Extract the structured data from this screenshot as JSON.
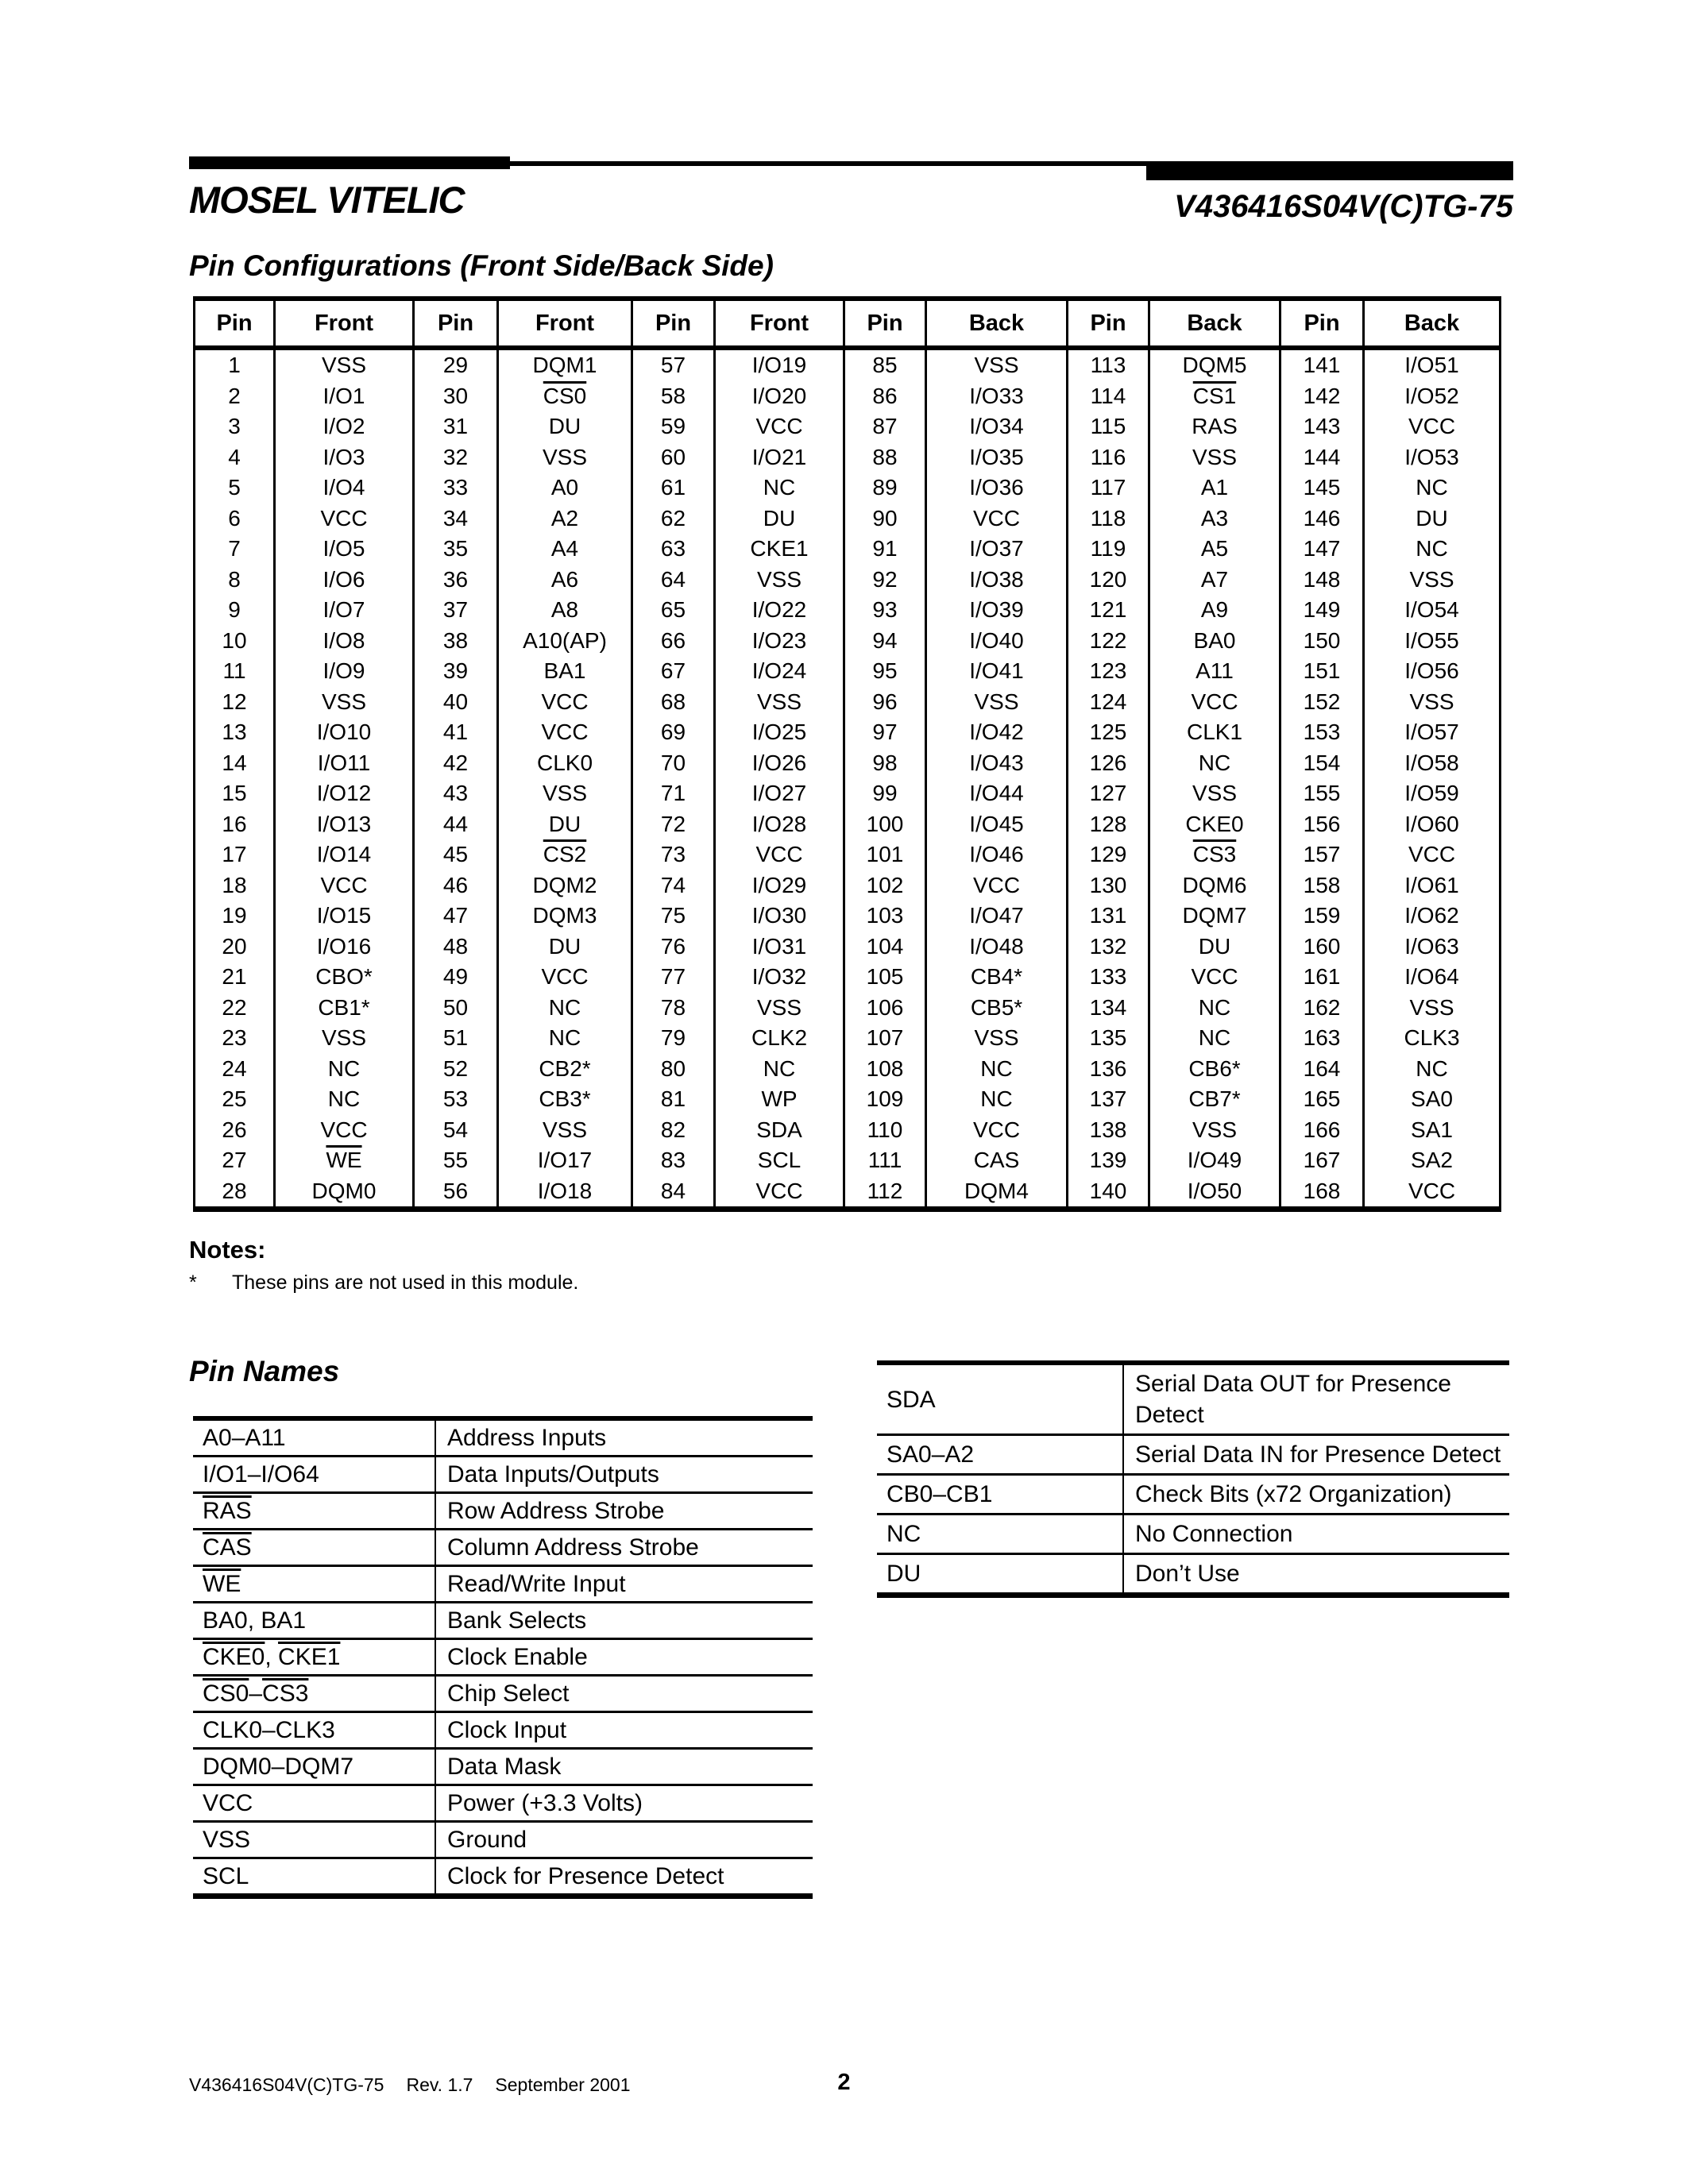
{
  "header": {
    "brand": "MOSEL VITELIC",
    "part_number": "V436416S04V(C)TG-75"
  },
  "titles": {
    "pin_config": "Pin Configurations (Front Side/Back Side)",
    "pin_names": "Pin Names"
  },
  "pin_table": {
    "headers": [
      "Pin",
      "Front",
      "Pin",
      "Front",
      "Pin",
      "Front",
      "Pin",
      "Back",
      "Pin",
      "Back",
      "Pin",
      "Back"
    ],
    "rows": [
      [
        "1",
        "VSS",
        "29",
        "DQM1",
        "57",
        "I/O19",
        "85",
        "VSS",
        "113",
        "DQM5",
        "141",
        "I/O51"
      ],
      [
        "2",
        "I/O1",
        "30",
        "{CS0}",
        "58",
        "I/O20",
        "86",
        "I/O33",
        "114",
        "{CS1}",
        "142",
        "I/O52"
      ],
      [
        "3",
        "I/O2",
        "31",
        "DU",
        "59",
        "VCC",
        "87",
        "I/O34",
        "115",
        "RAS",
        "143",
        "VCC"
      ],
      [
        "4",
        "I/O3",
        "32",
        "VSS",
        "60",
        "I/O21",
        "88",
        "I/O35",
        "116",
        "VSS",
        "144",
        "I/O53"
      ],
      [
        "5",
        "I/O4",
        "33",
        "A0",
        "61",
        "NC",
        "89",
        "I/O36",
        "117",
        "A1",
        "145",
        "NC"
      ],
      [
        "6",
        "VCC",
        "34",
        "A2",
        "62",
        "DU",
        "90",
        "VCC",
        "118",
        "A3",
        "146",
        "DU"
      ],
      [
        "7",
        "I/O5",
        "35",
        "A4",
        "63",
        "CKE1",
        "91",
        "I/O37",
        "119",
        "A5",
        "147",
        "NC"
      ],
      [
        "8",
        "I/O6",
        "36",
        "A6",
        "64",
        "VSS",
        "92",
        "I/O38",
        "120",
        "A7",
        "148",
        "VSS"
      ],
      [
        "9",
        "I/O7",
        "37",
        "A8",
        "65",
        "I/O22",
        "93",
        "I/O39",
        "121",
        "A9",
        "149",
        "I/O54"
      ],
      [
        "10",
        "I/O8",
        "38",
        "A10(AP)",
        "66",
        "I/O23",
        "94",
        "I/O40",
        "122",
        "BA0",
        "150",
        "I/O55"
      ],
      [
        "11",
        "I/O9",
        "39",
        "BA1",
        "67",
        "I/O24",
        "95",
        "I/O41",
        "123",
        "A11",
        "151",
        "I/O56"
      ],
      [
        "12",
        "VSS",
        "40",
        "VCC",
        "68",
        "VSS",
        "96",
        "VSS",
        "124",
        "VCC",
        "152",
        "VSS"
      ],
      [
        "13",
        "I/O10",
        "41",
        "VCC",
        "69",
        "I/O25",
        "97",
        "I/O42",
        "125",
        "CLK1",
        "153",
        "I/O57"
      ],
      [
        "14",
        "I/O11",
        "42",
        "CLK0",
        "70",
        "I/O26",
        "98",
        "I/O43",
        "126",
        "NC",
        "154",
        "I/O58"
      ],
      [
        "15",
        "I/O12",
        "43",
        "VSS",
        "71",
        "I/O27",
        "99",
        "I/O44",
        "127",
        "VSS",
        "155",
        "I/O59"
      ],
      [
        "16",
        "I/O13",
        "44",
        "DU",
        "72",
        "I/O28",
        "100",
        "I/O45",
        "128",
        "CKE0",
        "156",
        "I/O60"
      ],
      [
        "17",
        "I/O14",
        "45",
        "{CS2}",
        "73",
        "VCC",
        "101",
        "I/O46",
        "129",
        "{CS3}",
        "157",
        "VCC"
      ],
      [
        "18",
        "VCC",
        "46",
        "DQM2",
        "74",
        "I/O29",
        "102",
        "VCC",
        "130",
        "DQM6",
        "158",
        "I/O61"
      ],
      [
        "19",
        "I/O15",
        "47",
        "DQM3",
        "75",
        "I/O30",
        "103",
        "I/O47",
        "131",
        "DQM7",
        "159",
        "I/O62"
      ],
      [
        "20",
        "I/O16",
        "48",
        "DU",
        "76",
        "I/O31",
        "104",
        "I/O48",
        "132",
        "DU",
        "160",
        "I/O63"
      ],
      [
        "21",
        "CBO*",
        "49",
        "VCC",
        "77",
        "I/O32",
        "105",
        "CB4*",
        "133",
        "VCC",
        "161",
        "I/O64"
      ],
      [
        "22",
        "CB1*",
        "50",
        "NC",
        "78",
        "VSS",
        "106",
        "CB5*",
        "134",
        "NC",
        "162",
        "VSS"
      ],
      [
        "23",
        "VSS",
        "51",
        "NC",
        "79",
        "CLK2",
        "107",
        "VSS",
        "135",
        "NC",
        "163",
        "CLK3"
      ],
      [
        "24",
        "NC",
        "52",
        "CB2*",
        "80",
        "NC",
        "108",
        "NC",
        "136",
        "CB6*",
        "164",
        "NC"
      ],
      [
        "25",
        "NC",
        "53",
        "CB3*",
        "81",
        "WP",
        "109",
        "NC",
        "137",
        "CB7*",
        "165",
        "SA0"
      ],
      [
        "26",
        "VCC",
        "54",
        "VSS",
        "82",
        "SDA",
        "110",
        "VCC",
        "138",
        "VSS",
        "166",
        "SA1"
      ],
      [
        "27",
        "{WE}",
        "55",
        "I/O17",
        "83",
        "SCL",
        "111",
        "CAS",
        "139",
        "I/O49",
        "167",
        "SA2"
      ],
      [
        "28",
        "DQM0",
        "56",
        "I/O18",
        "84",
        "VCC",
        "112",
        "DQM4",
        "140",
        "I/O50",
        "168",
        "VCC"
      ]
    ]
  },
  "notes": {
    "heading": "Notes:",
    "star": "*",
    "text": "These pins are not used in this module."
  },
  "pin_names_left": {
    "rows": [
      [
        "A0–A11",
        "Address Inputs"
      ],
      [
        "I/O1–I/O64",
        "Data Inputs/Outputs"
      ],
      [
        "{RAS}",
        "Row Address Strobe"
      ],
      [
        "{CAS}",
        "Column Address Strobe"
      ],
      [
        "{WE}",
        "Read/Write Input"
      ],
      [
        "BA0, BA1",
        "Bank Selects"
      ],
      [
        "{CKE0}, {CKE1}",
        "Clock Enable"
      ],
      [
        "{CS0}–{CS3}",
        "Chip Select"
      ],
      [
        "CLK0–CLK3",
        "Clock Input"
      ],
      [
        "DQM0–DQM7",
        "Data Mask"
      ],
      [
        "VCC",
        "Power (+3.3 Volts)"
      ],
      [
        "VSS",
        "Ground"
      ],
      [
        "SCL",
        "Clock for Presence Detect"
      ]
    ]
  },
  "pin_names_right": {
    "rows": [
      [
        "SDA",
        "Serial Data OUT for Presence Detect"
      ],
      [
        "SA0–A2",
        "Serial Data IN for Presence Detect"
      ],
      [
        "CB0–CB1",
        "Check Bits (x72 Organization)"
      ],
      [
        "NC",
        "No Connection"
      ],
      [
        "DU",
        "Don’t Use"
      ]
    ]
  },
  "footer": {
    "doc": "V436416S04V(C)TG-75",
    "rev": "Rev. 1.7",
    "date": "September 2001",
    "page": "2"
  }
}
